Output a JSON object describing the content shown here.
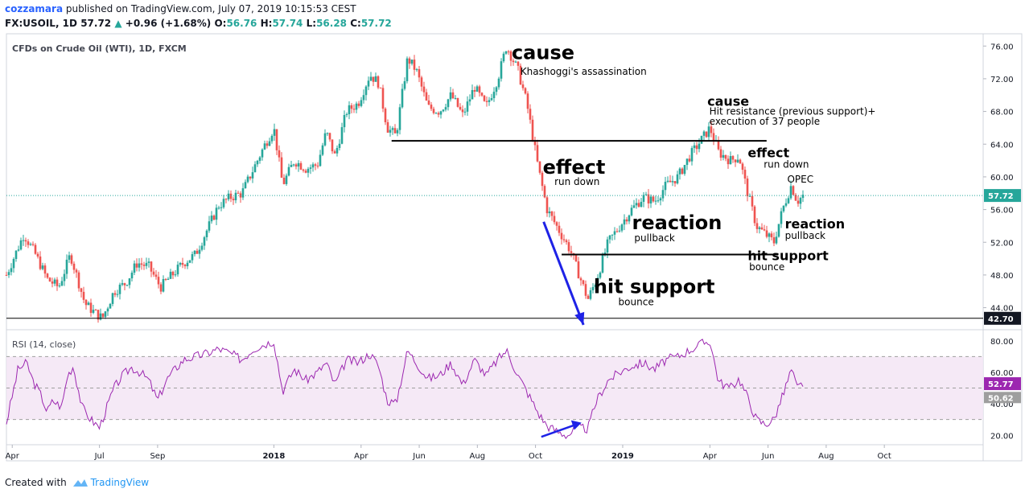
{
  "header": {
    "user": "cozzamara",
    "published": "published on TradingView.com, July 07, 2019 10:15:53 CEST",
    "symbol": "FX:USOIL, 1D",
    "price": "57.72",
    "change": "+0.96 (+1.68%)",
    "o_label": "O:",
    "o_val": "56.76",
    "h_label": "H:",
    "h_val": "57.74",
    "l_label": "L:",
    "l_val": "56.28",
    "c_label": "C:",
    "c_val": "57.72"
  },
  "footer": {
    "created": "Created with",
    "brand": "TradingView"
  },
  "colors": {
    "up": "#26a69a",
    "down": "#ef5350",
    "rsi": "#9c27b0",
    "annotation_arrow": "#1e22e6"
  },
  "chart_data": {
    "type": "candlestick",
    "title": "CFDs on Crude Oil (WTI), 1D, FXCM",
    "last_price": "57.72",
    "level_label": "42.70",
    "y_ticks": [
      "76.00",
      "72.00",
      "68.00",
      "64.00",
      "60.00",
      "56.00",
      "52.00",
      "48.00",
      "44.00"
    ],
    "ylim": [
      41.5,
      77.5
    ],
    "x_ticks": [
      {
        "label": "Apr",
        "t": 3.3
      },
      {
        "label": "Jul",
        "t": 6.3
      },
      {
        "label": "Sep",
        "t": 8.3
      },
      {
        "label": "2018",
        "t": 12.3
      },
      {
        "label": "Apr",
        "t": 15.3
      },
      {
        "label": "Jun",
        "t": 17.3
      },
      {
        "label": "Aug",
        "t": 19.3
      },
      {
        "label": "Oct",
        "t": 21.3
      },
      {
        "label": "2019",
        "t": 24.3
      },
      {
        "label": "Apr",
        "t": 27.3
      },
      {
        "label": "Jun",
        "t": 29.3
      },
      {
        "label": "Aug",
        "t": 31.3
      },
      {
        "label": "Oct",
        "t": 33.3
      }
    ],
    "bold_ticks": [
      "2018",
      "2019"
    ],
    "xlim": [
      3.1,
      36.7
    ],
    "price_path": [
      [
        3.1,
        48.0
      ],
      [
        3.7,
        53.0
      ],
      [
        4.1,
        50.5
      ],
      [
        4.5,
        47.5
      ],
      [
        4.9,
        46.5
      ],
      [
        5.3,
        50.5
      ],
      [
        5.8,
        44.5
      ],
      [
        6.1,
        43.5
      ],
      [
        6.4,
        42.7
      ],
      [
        6.8,
        46.0
      ],
      [
        7.2,
        47.0
      ],
      [
        7.6,
        49.5
      ],
      [
        8.0,
        49.0
      ],
      [
        8.4,
        46.5
      ],
      [
        8.8,
        48.0
      ],
      [
        9.2,
        49.5
      ],
      [
        9.6,
        50.5
      ],
      [
        10.0,
        53.5
      ],
      [
        10.4,
        56.5
      ],
      [
        10.8,
        57.5
      ],
      [
        11.2,
        58.0
      ],
      [
        11.6,
        61.0
      ],
      [
        12.0,
        64.0
      ],
      [
        12.3,
        66.0
      ],
      [
        12.6,
        59.0
      ],
      [
        13.0,
        62.0
      ],
      [
        13.4,
        61.0
      ],
      [
        13.8,
        61.5
      ],
      [
        14.1,
        65.5
      ],
      [
        14.4,
        62.5
      ],
      [
        14.8,
        68.0
      ],
      [
        15.2,
        69.0
      ],
      [
        15.6,
        72.5
      ],
      [
        15.9,
        71.5
      ],
      [
        16.2,
        66.0
      ],
      [
        16.5,
        65.0
      ],
      [
        16.9,
        74.5
      ],
      [
        17.2,
        73.0
      ],
      [
        17.6,
        68.5
      ],
      [
        18.0,
        68.0
      ],
      [
        18.4,
        70.0
      ],
      [
        18.8,
        67.5
      ],
      [
        19.2,
        71.0
      ],
      [
        19.6,
        68.5
      ],
      [
        20.0,
        72.0
      ],
      [
        20.3,
        76.0
      ],
      [
        20.7,
        73.0
      ],
      [
        21.0,
        69.0
      ],
      [
        21.4,
        61.0
      ],
      [
        21.7,
        56.0
      ],
      [
        22.1,
        53.5
      ],
      [
        22.5,
        51.0
      ],
      [
        22.9,
        47.0
      ],
      [
        23.1,
        45.0
      ],
      [
        23.4,
        47.5
      ],
      [
        23.8,
        52.0
      ],
      [
        24.2,
        54.0
      ],
      [
        24.6,
        56.0
      ],
      [
        25.0,
        57.5
      ],
      [
        25.4,
        57.0
      ],
      [
        25.8,
        59.0
      ],
      [
        26.2,
        60.0
      ],
      [
        26.6,
        62.5
      ],
      [
        27.0,
        64.5
      ],
      [
        27.3,
        66.0
      ],
      [
        27.6,
        63.0
      ],
      [
        28.0,
        62.0
      ],
      [
        28.3,
        62.5
      ],
      [
        28.6,
        58.0
      ],
      [
        28.9,
        54.0
      ],
      [
        29.2,
        53.0
      ],
      [
        29.5,
        52.0
      ],
      [
        29.8,
        56.0
      ],
      [
        30.1,
        59.0
      ],
      [
        30.3,
        57.0
      ],
      [
        30.5,
        57.7
      ]
    ],
    "rsi": {
      "label": "RSI (14, close)",
      "y_ticks": [
        "80.00",
        "60.00",
        "40.00",
        "20.00"
      ],
      "ylim": [
        14,
        86
      ],
      "band": [
        30,
        70
      ],
      "last_values": [
        "52.77",
        "50.62"
      ],
      "path": [
        [
          3.1,
          28
        ],
        [
          3.5,
          62
        ],
        [
          3.8,
          66
        ],
        [
          4.0,
          55
        ],
        [
          4.3,
          45
        ],
        [
          4.5,
          35
        ],
        [
          4.7,
          42
        ],
        [
          5.0,
          38
        ],
        [
          5.2,
          58
        ],
        [
          5.4,
          64
        ],
        [
          5.7,
          38
        ],
        [
          6.0,
          30
        ],
        [
          6.3,
          25
        ],
        [
          6.5,
          35
        ],
        [
          6.8,
          50
        ],
        [
          7.1,
          58
        ],
        [
          7.4,
          63
        ],
        [
          7.7,
          60
        ],
        [
          8.0,
          55
        ],
        [
          8.3,
          42
        ],
        [
          8.6,
          55
        ],
        [
          8.9,
          62
        ],
        [
          9.2,
          68
        ],
        [
          9.6,
          70
        ],
        [
          10.0,
          72
        ],
        [
          10.4,
          75
        ],
        [
          10.8,
          72
        ],
        [
          11.2,
          68
        ],
        [
          11.6,
          75
        ],
        [
          12.0,
          78
        ],
        [
          12.3,
          80
        ],
        [
          12.6,
          48
        ],
        [
          13.0,
          62
        ],
        [
          13.4,
          55
        ],
        [
          13.8,
          60
        ],
        [
          14.1,
          66
        ],
        [
          14.4,
          52
        ],
        [
          14.8,
          68
        ],
        [
          15.2,
          66
        ],
        [
          15.6,
          72
        ],
        [
          15.9,
          64
        ],
        [
          16.2,
          42
        ],
        [
          16.5,
          40
        ],
        [
          16.9,
          74
        ],
        [
          17.2,
          66
        ],
        [
          17.6,
          56
        ],
        [
          18.0,
          58
        ],
        [
          18.4,
          66
        ],
        [
          18.8,
          52
        ],
        [
          19.2,
          68
        ],
        [
          19.6,
          58
        ],
        [
          20.0,
          68
        ],
        [
          20.3,
          74
        ],
        [
          20.7,
          58
        ],
        [
          21.0,
          48
        ],
        [
          21.4,
          34
        ],
        [
          21.7,
          26
        ],
        [
          22.1,
          22
        ],
        [
          22.4,
          20
        ],
        [
          22.8,
          25
        ],
        [
          23.1,
          24
        ],
        [
          23.4,
          42
        ],
        [
          23.8,
          55
        ],
        [
          24.2,
          60
        ],
        [
          24.6,
          64
        ],
        [
          25.0,
          66
        ],
        [
          25.4,
          62
        ],
        [
          25.8,
          68
        ],
        [
          26.2,
          70
        ],
        [
          26.6,
          74
        ],
        [
          27.0,
          78
        ],
        [
          27.3,
          80
        ],
        [
          27.6,
          54
        ],
        [
          28.0,
          50
        ],
        [
          28.3,
          56
        ],
        [
          28.6,
          44
        ],
        [
          28.9,
          30
        ],
        [
          29.2,
          27
        ],
        [
          29.5,
          30
        ],
        [
          29.8,
          45
        ],
        [
          30.0,
          56
        ],
        [
          30.1,
          62
        ],
        [
          30.3,
          50
        ],
        [
          30.5,
          53
        ]
      ]
    },
    "annotations": [
      {
        "text": "cause",
        "size": "big",
        "t": 20.48,
        "y": 74.4
      },
      {
        "text": "Khashoggi's assassination",
        "size": "small",
        "t": 20.78,
        "y": 72.5
      },
      {
        "text": "effect",
        "size": "big",
        "t": 21.55,
        "y": 60.4
      },
      {
        "text": "run down",
        "size": "small",
        "t": 21.95,
        "y": 59.0
      },
      {
        "text": "hit support",
        "size": "big",
        "t": 23.3,
        "y": 45.8
      },
      {
        "text": "bounce",
        "size": "small",
        "t": 24.15,
        "y": 44.3
      },
      {
        "text": "reaction",
        "size": "big",
        "t": 24.62,
        "y": 53.6
      },
      {
        "text": "pullback",
        "size": "small",
        "t": 24.7,
        "y": 52.1
      },
      {
        "text": "cause",
        "size": "mid",
        "t": 27.21,
        "y": 68.7
      },
      {
        "text": "Hit resistance (previous support)+",
        "size": "small",
        "t": 27.28,
        "y": 67.6
      },
      {
        "text": "execution of 37 people",
        "size": "small",
        "t": 27.28,
        "y": 66.4
      },
      {
        "text": "effect",
        "size": "mid",
        "t": 28.6,
        "y": 62.4
      },
      {
        "text": "run down",
        "size": "small",
        "t": 29.15,
        "y": 61.1
      },
      {
        "text": "OPEC",
        "size": "small",
        "t": 29.96,
        "y": 59.3
      },
      {
        "text": "reaction",
        "size": "mid",
        "t": 29.88,
        "y": 53.7
      },
      {
        "text": "pullback",
        "size": "small",
        "t": 29.88,
        "y": 52.4
      },
      {
        "text": "hit support",
        "size": "mid",
        "t": 28.6,
        "y": 49.8
      },
      {
        "text": "bounce",
        "size": "small",
        "t": 28.65,
        "y": 48.6
      }
    ],
    "lines": [
      {
        "t1": 16.35,
        "t2": 29.25,
        "y": 64.4
      },
      {
        "t1": 22.2,
        "t2": 29.65,
        "y": 50.5
      }
    ]
  }
}
